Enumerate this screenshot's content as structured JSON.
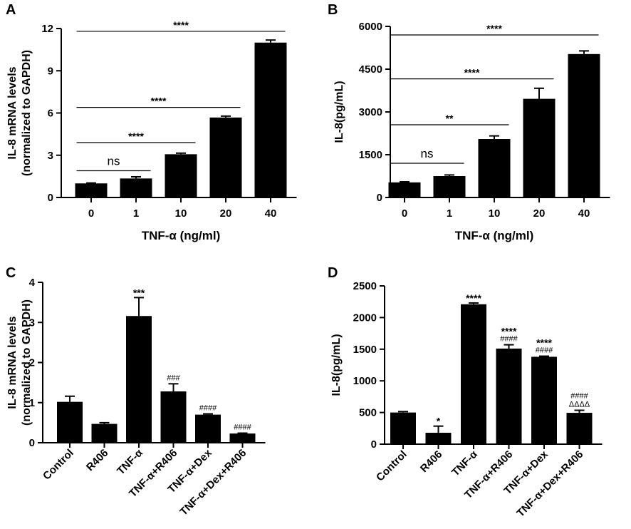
{
  "chart_data": [
    {
      "panel": "A",
      "type": "bar",
      "categories": [
        "0",
        "1",
        "10",
        "20",
        "40"
      ],
      "values": [
        1.0,
        1.35,
        3.07,
        5.68,
        11.0
      ],
      "errors": [
        0.03,
        0.12,
        0.08,
        0.1,
        0.18
      ],
      "ylabel_line1": "IL-8 mRNA levels",
      "ylabel_line2": "(normalized to GAPDH)",
      "xlabel": "TNF-α (ng/ml)",
      "ylim": [
        0,
        12
      ],
      "yticks": [
        "0",
        "3",
        "6",
        "9",
        "12"
      ],
      "yticks_values": [
        0,
        3,
        6,
        9,
        12
      ],
      "comparisons": [
        {
          "from": 0,
          "to": 1,
          "label": "ns",
          "y": 1.9
        },
        {
          "from": 0,
          "to": 2,
          "label": "****",
          "y": 3.9
        },
        {
          "from": 0,
          "to": 3,
          "label": "****",
          "y": 6.4
        },
        {
          "from": 0,
          "to": 4,
          "label": "****",
          "y": 11.8
        }
      ]
    },
    {
      "panel": "B",
      "type": "bar",
      "categories": [
        "0",
        "1",
        "10",
        "20",
        "40"
      ],
      "values": [
        530,
        750,
        2050,
        3460,
        5030
      ],
      "errors": [
        20,
        40,
        110,
        370,
        110
      ],
      "ylabel_line1": "IL-8(pg/mL)",
      "ylabel_line2": "",
      "xlabel": "TNF-α (ng/ml)",
      "ylim": [
        0,
        6000
      ],
      "yticks": [
        "0",
        "1500",
        "3000",
        "4500",
        "6000"
      ],
      "yticks_values": [
        0,
        1500,
        3000,
        4500,
        6000
      ],
      "comparisons": [
        {
          "from": 0,
          "to": 1,
          "label": "ns",
          "y": 1200
        },
        {
          "from": 0,
          "to": 2,
          "label": "**",
          "y": 2550
        },
        {
          "from": 0,
          "to": 3,
          "label": "****",
          "y": 4160
        },
        {
          "from": 0,
          "to": 4,
          "label": "****",
          "y": 5700
        }
      ]
    },
    {
      "panel": "C",
      "type": "bar",
      "categories": [
        "Control",
        "R406",
        "TNF-α",
        "TNF-α+R406",
        "TNF-α+Dex",
        "TNF-α+Dex+R406"
      ],
      "values": [
        1.02,
        0.47,
        3.16,
        1.28,
        0.7,
        0.23
      ],
      "errors": [
        0.14,
        0.03,
        0.46,
        0.19,
        0.02,
        0.01
      ],
      "ylabel_line1": "IL-8 mRNA levels",
      "ylabel_line2": "(normalized to GAPDH)",
      "xlabel": "",
      "ylim": [
        0,
        4
      ],
      "yticks": [
        "0",
        "1",
        "2",
        "3",
        "4"
      ],
      "yticks_values": [
        0,
        1,
        2,
        3,
        4
      ],
      "annotations": [
        {
          "bar": 2,
          "lines": [
            "***"
          ]
        },
        {
          "bar": 3,
          "lines": [
            "###"
          ]
        },
        {
          "bar": 4,
          "lines": [
            "####"
          ]
        },
        {
          "bar": 5,
          "lines": [
            "####"
          ]
        }
      ]
    },
    {
      "panel": "D",
      "type": "bar",
      "categories": [
        "Control",
        "R406",
        "TNF-α",
        "TNF-α+R406",
        "TNF-α+Dex",
        "TNF-α+Dex+R406"
      ],
      "values": [
        500,
        180,
        2210,
        1510,
        1380,
        495
      ],
      "errors": [
        15,
        105,
        20,
        60,
        10,
        40
      ],
      "ylabel_line1": "IL-8(pg/mL)",
      "ylabel_line2": "",
      "xlabel": "",
      "ylim": [
        0,
        2500
      ],
      "yticks": [
        "0",
        "500",
        "1000",
        "1500",
        "2000",
        "2500"
      ],
      "yticks_values": [
        0,
        500,
        1000,
        1500,
        2000,
        2500
      ],
      "annotations": [
        {
          "bar": 1,
          "lines": [
            "*"
          ]
        },
        {
          "bar": 2,
          "lines": [
            "****"
          ]
        },
        {
          "bar": 3,
          "lines": [
            "****",
            "####"
          ]
        },
        {
          "bar": 4,
          "lines": [
            "****",
            "####"
          ]
        },
        {
          "bar": 5,
          "lines": [
            "####",
            "ΔΔΔΔ"
          ]
        }
      ]
    }
  ],
  "panel_labels": [
    "A",
    "B",
    "C",
    "D"
  ]
}
